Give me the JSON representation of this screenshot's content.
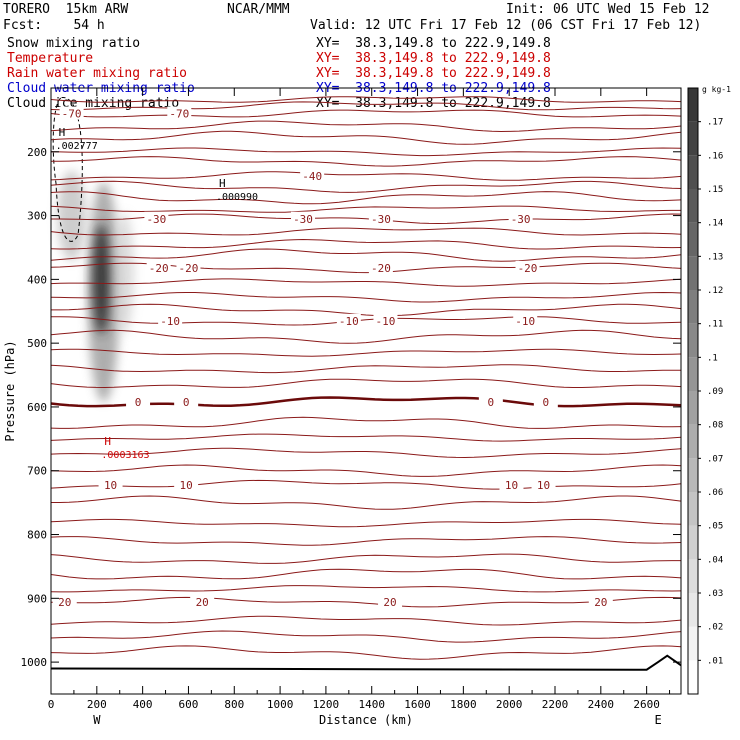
{
  "header": {
    "model": "TORERO  15km ARW",
    "org": "NCAR/MMM",
    "init": "Init: 06 UTC Wed 15 Feb 12",
    "fcst": "Fcst:    54 h",
    "valid": "Valid: 12 UTC Fri 17 Feb 12 (06 CST Fri 17 Feb 12)"
  },
  "fields": [
    {
      "name": "Snow mixing ratio",
      "xy": "XY=  38.3,149.8 to 222.9,149.8",
      "color": "#000000"
    },
    {
      "name": "Temperature",
      "xy": "XY=  38.3,149.8 to 222.9,149.8",
      "color": "#cc0000"
    },
    {
      "name": "Rain water mixing ratio",
      "xy": "XY=  38.3,149.8 to 222.9,149.8",
      "color": "#cc0000"
    },
    {
      "name": "Cloud water mixing ratio",
      "xy": "XY=  38.3,149.8 to 222.9,149.8",
      "color": "#0000cc"
    },
    {
      "name": "Cloud ice mixing ratio",
      "xy": "XY=  38.3,149.8 to 222.9,149.8",
      "color": "#000000"
    }
  ],
  "chart_data": {
    "type": "contour",
    "xlabel": "Distance (km)",
    "ylabel": "Pressure (hPa)",
    "xlim": [
      0,
      2750
    ],
    "ylim": [
      1050,
      100
    ],
    "x_ticks": [
      0,
      200,
      400,
      600,
      800,
      1000,
      1200,
      1400,
      1600,
      1800,
      2000,
      2200,
      2400,
      2600
    ],
    "y_ticks": [
      200,
      300,
      400,
      500,
      600,
      700,
      800,
      900,
      1000
    ],
    "x_end_labels": {
      "left": "W",
      "right": "E"
    },
    "temperature_contours": [
      {
        "value": -70,
        "pressure": 140,
        "labels_at": [
          90,
          560
        ]
      },
      {
        "value": -40,
        "pressure": 238,
        "labels_at": [
          1140
        ]
      },
      {
        "value": -30,
        "pressure": 305,
        "labels_at": [
          460,
          1100,
          1440,
          2050
        ]
      },
      {
        "value": -20,
        "pressure": 382,
        "labels_at": [
          470,
          600,
          1440,
          2080
        ]
      },
      {
        "value": -10,
        "pressure": 465,
        "labels_at": [
          520,
          1300,
          1460,
          2070
        ]
      },
      {
        "value": 0,
        "pressure": 592,
        "labels_at": [
          380,
          590,
          1920,
          2160
        ]
      },
      {
        "value": 10,
        "pressure": 722,
        "labels_at": [
          260,
          590,
          2010,
          2150
        ]
      },
      {
        "value": 20,
        "pressure": 906,
        "labels_at": [
          60,
          660,
          1480,
          2400
        ]
      }
    ],
    "extrema": [
      {
        "type": "H",
        "value": ".002777",
        "x": 20,
        "pressure": 175,
        "color": "#000000"
      },
      {
        "type": "H",
        "value": ".000990",
        "x": 720,
        "pressure": 255,
        "color": "#000000"
      },
      {
        "type": "H",
        "value": ".0003163",
        "x": 220,
        "pressure": 660,
        "color": "#cc0000"
      }
    ],
    "mixing_ratio_colorbar": {
      "unit": "g kg-1",
      "ticks": [
        ".01",
        ".02",
        ".03",
        ".04",
        ".05",
        ".06",
        ".07",
        ".08",
        ".09",
        ".1",
        ".11",
        ".12",
        ".13",
        ".14",
        ".15",
        ".16",
        ".17"
      ]
    }
  }
}
